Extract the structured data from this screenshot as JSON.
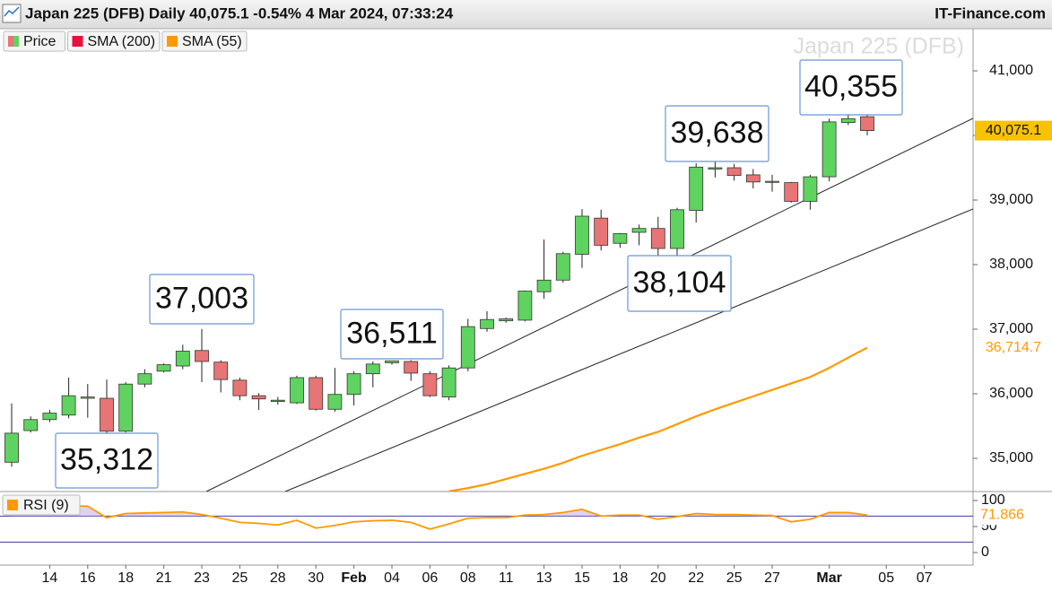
{
  "chart_data": {
    "type": "candlestick",
    "title": "Japan 225 (DFB) Daily 40,075.1 -0.54% 4 Mar 2024, 07:33:24",
    "site": "IT-Finance.com",
    "watermark": "Japan 225 (DFB)",
    "legend": [
      {
        "name": "Price",
        "colors": [
          "#e87575",
          "#5fd35f"
        ]
      },
      {
        "name": "SMA (200)",
        "color": "#e8103c"
      },
      {
        "name": "SMA (55)",
        "color": "#ff9900"
      }
    ],
    "up_color": "#5fd35f",
    "down_color": "#e87575",
    "categories": [
      null,
      null,
      "14",
      null,
      "16",
      null,
      "18",
      null,
      "21",
      null,
      "23",
      null,
      "25",
      null,
      "28",
      null,
      "30",
      null,
      "Feb",
      null,
      "04",
      null,
      "06",
      null,
      "08",
      null,
      "11",
      null,
      "13",
      null,
      "15",
      null,
      "18",
      null,
      "20",
      null,
      "22",
      null,
      "25",
      null,
      "27",
      null,
      null,
      "Mar",
      null,
      null,
      "05",
      null,
      "07",
      null,
      null
    ],
    "open": [
      34940,
      35430,
      35600,
      35670,
      35930,
      35930,
      35420,
      36150,
      36350,
      36430,
      36670,
      36490,
      36210,
      35970,
      35880,
      35860,
      36250,
      35760,
      35990,
      36310,
      36480,
      36500,
      36310,
      35950,
      36400,
      37010,
      37130,
      37140,
      37580,
      37760,
      38160,
      38720,
      38330,
      38500,
      38560,
      38250,
      38840,
      39480,
      39500,
      39390,
      39280,
      39270,
      38980,
      39360,
      40200,
      40290,
      null,
      null,
      null,
      null,
      null
    ],
    "high": [
      35850,
      35650,
      35750,
      36250,
      36150,
      36220,
      36180,
      36380,
      36470,
      36760,
      37003,
      36520,
      36250,
      36010,
      35950,
      36280,
      36280,
      36400,
      36350,
      36500,
      36511,
      36520,
      36350,
      36440,
      37160,
      37280,
      37180,
      37600,
      38390,
      38200,
      38860,
      38850,
      38490,
      38620,
      38740,
      38880,
      39570,
      39638,
      39560,
      39480,
      39390,
      39280,
      39390,
      40260,
      40355,
      40340,
      null,
      null,
      null,
      null,
      null
    ],
    "low": [
      34870,
      35400,
      35560,
      35620,
      35630,
      35312,
      35400,
      36100,
      36330,
      36380,
      36180,
      36020,
      35900,
      35750,
      35830,
      35840,
      35740,
      35720,
      35820,
      36100,
      36450,
      36200,
      35950,
      35900,
      36350,
      36960,
      37100,
      37120,
      37470,
      37720,
      37950,
      38220,
      38260,
      38300,
      38140,
      38104,
      38650,
      39350,
      39300,
      39180,
      39130,
      38960,
      38850,
      39290,
      40160,
      40000,
      null,
      null,
      null,
      null,
      null
    ],
    "close": [
      35390,
      35600,
      35700,
      35970,
      35950,
      35420,
      36150,
      36310,
      36450,
      36660,
      36500,
      36220,
      35970,
      35920,
      35900,
      36250,
      35760,
      35990,
      36310,
      36460,
      36510,
      36320,
      35970,
      36400,
      37040,
      37150,
      37160,
      37590,
      37760,
      38170,
      38750,
      38300,
      38480,
      38560,
      38250,
      38850,
      39510,
      39500,
      39380,
      39280,
      39290,
      38980,
      39360,
      40210,
      40260,
      40075.1,
      null,
      null,
      null,
      null,
      null
    ],
    "sma_55": [
      null,
      null,
      null,
      null,
      null,
      null,
      null,
      null,
      null,
      null,
      null,
      null,
      null,
      null,
      null,
      null,
      null,
      null,
      null,
      null,
      null,
      null,
      null,
      34490,
      34540,
      34600,
      34680,
      34760,
      34840,
      34930,
      35040,
      35130,
      35220,
      35320,
      35410,
      35530,
      35650,
      35760,
      35860,
      35960,
      36060,
      36160,
      36260,
      36400,
      36560,
      36714.7,
      null,
      null,
      null,
      null,
      null
    ],
    "ylim": [
      34486,
      41653
    ],
    "yticks": [
      {
        "value": 35000,
        "label": "35,000"
      },
      {
        "value": 36000,
        "label": "36,000"
      },
      {
        "value": 37000,
        "label": "37,000"
      },
      {
        "value": 38000,
        "label": "38,000"
      },
      {
        "value": 39000,
        "label": "39,000"
      },
      {
        "value": 40000,
        "label": "40,000"
      },
      {
        "value": 41000,
        "label": "41,000"
      }
    ],
    "price_tag": "40,075.1",
    "sma_tag": "36,714.7",
    "annotations": [
      "35,312",
      "37,003",
      "36,511",
      "38,104",
      "39,638",
      "40,355"
    ],
    "rsi": {
      "name": "RSI (9)",
      "color": "#ff9900",
      "values": [
        88,
        89,
        88,
        90,
        89,
        67,
        75,
        76,
        77,
        78,
        73,
        66,
        58,
        56,
        53,
        62,
        47,
        52,
        59,
        61,
        62,
        58,
        45,
        55,
        66,
        67,
        67,
        72,
        73,
        77,
        83,
        70,
        72,
        72,
        64,
        69,
        75,
        73,
        73,
        72,
        71,
        59,
        64,
        77,
        77,
        71.866,
        null,
        null,
        null,
        null,
        null
      ],
      "ylim": [
        -24,
        117
      ],
      "yticks": [
        0,
        50,
        100
      ],
      "levels": [
        70,
        20
      ]
    }
  }
}
